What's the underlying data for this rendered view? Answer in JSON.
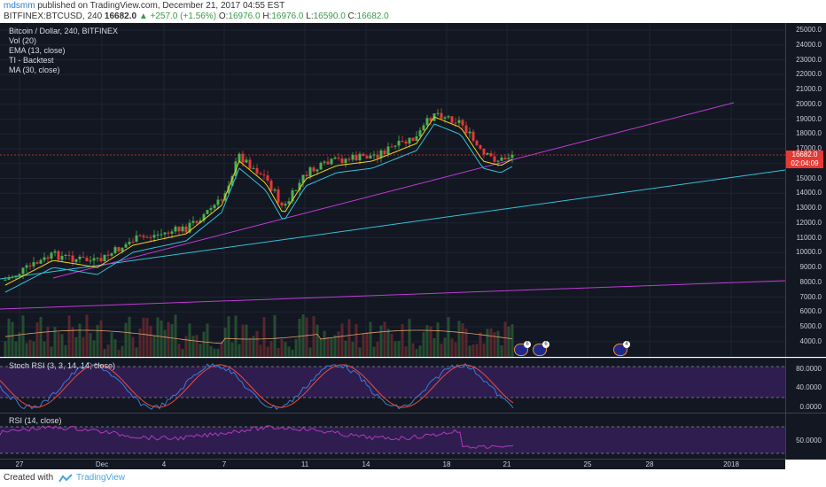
{
  "header": {
    "author": "mdsmm",
    "published": "published on TradingView.com, December 21, 2017 04:55 EST",
    "symbol": "BITFINEX:BTCUSD, 240",
    "last": "16682.0",
    "change": "▲ +257.0 (+1.56%)",
    "o_label": "O:",
    "o_value": "16976.0",
    "h_label": "H:",
    "h_value": "16976.0",
    "l_label": "L:",
    "l_value": "16590.0",
    "c_label": "C:",
    "c_value": "16682.0"
  },
  "main_pane": {
    "legend": [
      "Bitcoin / Dollar, 240, BITFINEX",
      "Vol (20)",
      "EMA (13, close)",
      "TI - Backtest",
      "MA (30, close)"
    ],
    "y_ticks": [
      "25000.0",
      "24000.0",
      "23000.0",
      "22000.0",
      "21000.0",
      "20000.0",
      "19000.0",
      "18000.0",
      "17000.0",
      "16000.0",
      "15000.0",
      "14000.0",
      "13000.0",
      "12000.0",
      "11000.0",
      "10000.0",
      "9000.0",
      "8000.0",
      "7000.0",
      "6000.0",
      "5000.0",
      "4000.0"
    ],
    "price_tag": "16682.0",
    "time_tag": "02:04:09",
    "event_counts": [
      "6",
      "6",
      "4"
    ]
  },
  "stoch_pane": {
    "label": "Stoch RSI (3, 3, 14, 14, close)",
    "y_ticks": [
      "80.0000",
      "40.0000",
      "0.0000"
    ]
  },
  "rsi_pane": {
    "label": "RSI (14, close)",
    "y_ticks": [
      "50.0000"
    ]
  },
  "x_axis": {
    "ticks": [
      "27",
      "Dec",
      "4",
      "7",
      "11",
      "14",
      "18",
      "21",
      "25",
      "28",
      "2018"
    ]
  },
  "footer": {
    "created_with": "Created with",
    "brand": "TradingView"
  },
  "colors": {
    "background": "#131722",
    "up_candle": "#4caf50",
    "down_candle": "#e53935",
    "ema": "#f2d321",
    "ma": "#33c2d6",
    "trendline": "#c23ad6",
    "stoch_k": "#3a7bd5",
    "stoch_d": "#e84b3c",
    "rsi": "#b03ab8"
  }
}
